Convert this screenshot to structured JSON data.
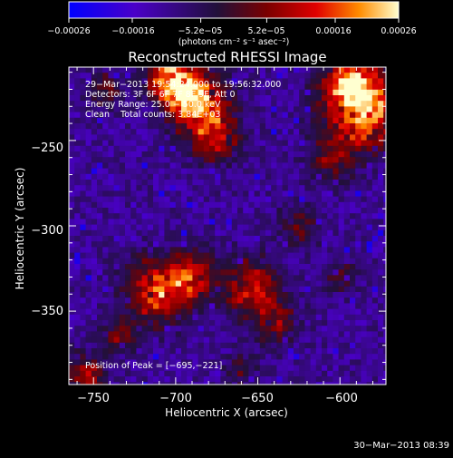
{
  "chart_data": {
    "type": "heatmap",
    "title": "Reconstructed RHESSI Image",
    "xlabel": "Heliocentric X (arcsec)",
    "ylabel": "Heliocentric Y (arcsec)",
    "xlim": [
      -765,
      -572
    ],
    "ylim": [
      -393,
      -207
    ],
    "x_ticks": [
      -750,
      -700,
      -650,
      -600
    ],
    "x_tick_labels": [
      "−750",
      "−700",
      "−650",
      "−600"
    ],
    "y_ticks": [
      -250,
      -300,
      -350
    ],
    "y_tick_labels": [
      "−250",
      "−300",
      "−350"
    ],
    "colorbar": {
      "min": -0.00026,
      "max": 0.00026,
      "ticks": [
        -0.00026,
        -0.00016,
        -5.2e-05,
        5.2e-05,
        0.00016,
        0.00026
      ],
      "tick_labels": [
        "−0.00026",
        "−0.00016",
        "−5.2e−05",
        "5.2e−05",
        "0.00016",
        "0.00026"
      ],
      "unit_label": "(photons cm⁻² s⁻¹ asec⁻²)",
      "colors": [
        "#0000ff",
        "#4a00c8",
        "#22103a",
        "#7a0000",
        "#e00000",
        "#ff8c00",
        "#ffffd0"
      ]
    },
    "info_lines": [
      "29−Mar−2013 19:54:24.000 to 19:56:32.000",
      "Detectors: 3F 6F 6F 7F 8F 9F, Att 0",
      "Energy Range: 25.0 − 50.0 keV",
      "Clean    Total counts: 3.84E+03"
    ],
    "peak_label": "Position of Peak = [−695,−221]",
    "peak": {
      "x": -695,
      "y": -221
    }
  },
  "footer": {
    "timestamp": "30−Mar−2013 08:39"
  }
}
